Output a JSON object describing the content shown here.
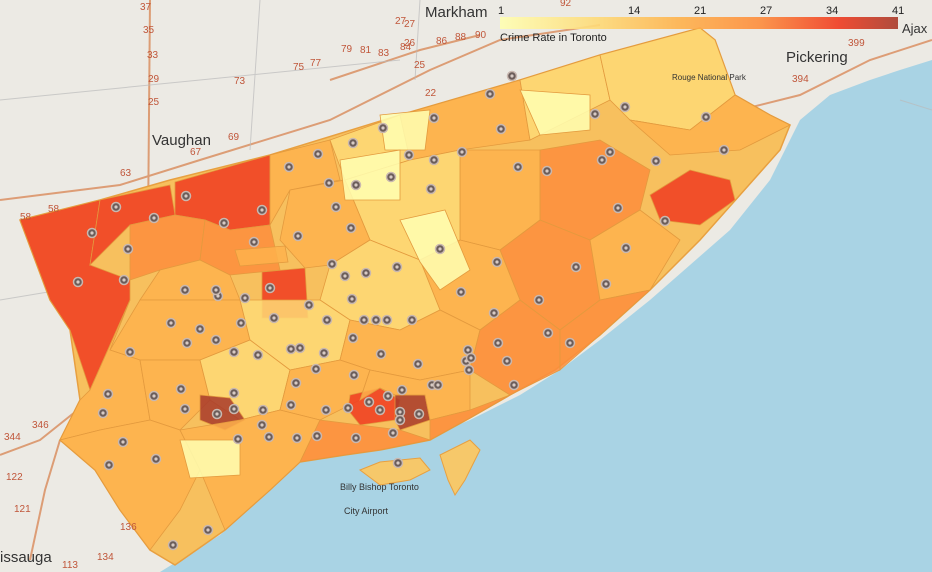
{
  "legend": {
    "title": "Crime Rate in Toronto",
    "ticks": [
      "1",
      "14",
      "21",
      "27",
      "34",
      "41"
    ],
    "colors": [
      "#ffffb2",
      "#fed976",
      "#feb24c",
      "#fd8d3c",
      "#f03b20",
      "#a83a2a"
    ]
  },
  "places": {
    "markham": "Markham",
    "vaughan": "Vaughan",
    "pickering": "Pickering",
    "ajax": "Ajax",
    "mississauga": "issauga",
    "rouge_park": "Rouge National Park",
    "airport_1": "Billy Bishop Toronto",
    "airport_2": "City Airport"
  },
  "routes": [
    "37",
    "35",
    "33",
    "29",
    "25",
    "27",
    "27",
    "26",
    "25",
    "22",
    "92",
    "73",
    "75",
    "77",
    "79",
    "81",
    "83",
    "84",
    "86",
    "88",
    "90",
    "67",
    "69",
    "63",
    "58",
    "58",
    "399",
    "394",
    "346",
    "344",
    "122",
    "121",
    "136",
    "134",
    "113"
  ],
  "colors": {
    "water": "#a9d3e4",
    "land": "#eceae4",
    "marker_fill": "#6b5d5a",
    "marker_ring": "#c9b8b0"
  },
  "region_count_note": "",
  "marker_count": 140
}
